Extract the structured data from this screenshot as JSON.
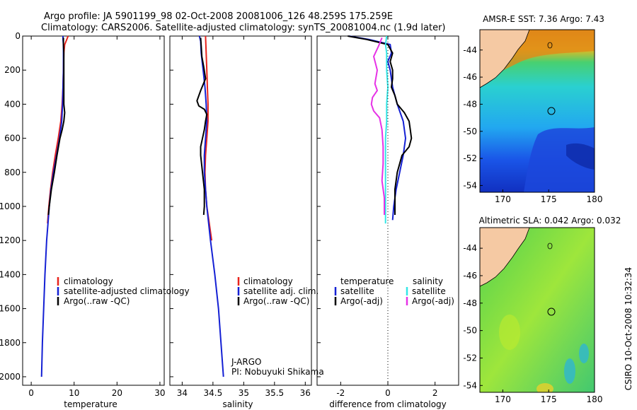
{
  "header": {
    "title_line1": "Argo profile: JA 5901199_98 02-Oct-2008 20081006_126 48.259S 175.259E",
    "title_line2": "Climatology: CARS2006. Satellite-adjusted climatology: synTS_20081004.nc (1.9d later)"
  },
  "credits": {
    "line1": "J-ARGO",
    "line2": "PI: Nobuyuki Shikama",
    "side_label": "CSIRO 10-Oct-2008 10:32:34"
  },
  "colors": {
    "climatology": "#e8231c",
    "satellite": "#1420d4",
    "argo": "#000000",
    "temp_satellite_diff": "#1420d4",
    "sal_satellite_diff": "#33e6e6",
    "sal_argo_diff": "#e632e6",
    "land": "#f5c9a3"
  },
  "maps": {
    "sst": {
      "title": "AMSR-E SST: 7.36 Argo: 7.43",
      "yticks": [
        "-44",
        "-46",
        "-48",
        "-50",
        "-52",
        "-54"
      ],
      "xticks": [
        "170",
        "175",
        "180"
      ]
    },
    "sla": {
      "title": "Altimetric SLA: 0.042 Argo: 0.032",
      "yticks": [
        "-44",
        "-46",
        "-48",
        "-50",
        "-52",
        "-54"
      ],
      "xticks": [
        "170",
        "175",
        "180"
      ]
    }
  },
  "chart_data": [
    {
      "type": "line",
      "panel": "temperature",
      "xlabel": "temperature",
      "ylabel": "",
      "xlim": [
        -2,
        31
      ],
      "ylim": [
        2050,
        0
      ],
      "xticks": [
        0,
        10,
        20,
        30
      ],
      "yticks": [
        0,
        200,
        400,
        600,
        800,
        1000,
        1200,
        1400,
        1600,
        1800,
        2000
      ],
      "legend": [
        "climatology",
        "satellite-adjusted climatology",
        "Argo(..raw -QC)"
      ],
      "series": [
        {
          "name": "climatology",
          "color": "#e8231c",
          "depth": [
            0,
            20,
            50,
            100,
            200,
            300,
            400,
            500,
            600,
            700,
            800,
            900,
            1000,
            1100
          ],
          "values": [
            8.6,
            8.3,
            7.8,
            7.6,
            7.5,
            7.4,
            7.2,
            6.9,
            6.3,
            5.6,
            5.0,
            4.5,
            4.1,
            3.8
          ]
        },
        {
          "name": "satellite-adjusted climatology",
          "color": "#1420d4",
          "depth": [
            0,
            20,
            50,
            100,
            200,
            300,
            400,
            500,
            600,
            700,
            800,
            900,
            1000,
            1100,
            1200,
            1400,
            1600,
            1800,
            2000
          ],
          "values": [
            7.4,
            7.4,
            7.5,
            7.5,
            7.5,
            7.4,
            7.3,
            7.1,
            6.6,
            5.9,
            5.2,
            4.6,
            4.2,
            3.9,
            3.6,
            3.2,
            2.9,
            2.6,
            2.4
          ]
        },
        {
          "name": "Argo(..raw -QC)",
          "color": "#000000",
          "depth": [
            10,
            50,
            100,
            200,
            300,
            400,
            450,
            500,
            550,
            600,
            700,
            800,
            900,
            1000,
            1050
          ],
          "values": [
            7.5,
            7.5,
            7.6,
            7.6,
            7.6,
            7.6,
            7.8,
            7.6,
            7.2,
            6.7,
            6.0,
            5.4,
            4.7,
            4.2,
            4.0
          ]
        }
      ]
    },
    {
      "type": "line",
      "panel": "salinity",
      "xlabel": "salinity",
      "xlim": [
        33.8,
        36.1
      ],
      "ylim": [
        2050,
        0
      ],
      "xticks": [
        34,
        34.5,
        35,
        35.5,
        36
      ],
      "legend": [
        "climatology",
        "satellite adj. clim.",
        "Argo(..raw -QC)"
      ],
      "series": [
        {
          "name": "climatology",
          "color": "#e8231c",
          "depth": [
            0,
            100,
            200,
            300,
            400,
            500,
            600,
            700,
            800,
            900,
            1000,
            1100,
            1200
          ],
          "values": [
            34.38,
            34.39,
            34.4,
            34.41,
            34.42,
            34.42,
            34.4,
            34.38,
            34.37,
            34.38,
            34.4,
            34.44,
            34.48
          ]
        },
        {
          "name": "satellite adj. clim.",
          "color": "#1420d4",
          "depth": [
            0,
            30,
            100,
            200,
            300,
            400,
            500,
            600,
            700,
            800,
            900,
            1000,
            1200,
            1400,
            1600,
            1800,
            2000
          ],
          "values": [
            34.28,
            34.3,
            34.31,
            34.34,
            34.37,
            34.39,
            34.4,
            34.38,
            34.36,
            34.36,
            34.38,
            34.4,
            34.46,
            34.53,
            34.59,
            34.63,
            34.67
          ]
        },
        {
          "name": "Argo(..raw -QC)",
          "color": "#000000",
          "depth": [
            10,
            60,
            120,
            180,
            250,
            320,
            380,
            410,
            430,
            460,
            500,
            550,
            600,
            650,
            700,
            800,
            900,
            1000,
            1050
          ],
          "values": [
            34.3,
            34.31,
            34.32,
            34.35,
            34.38,
            34.3,
            34.24,
            34.27,
            34.36,
            34.4,
            34.38,
            34.36,
            34.33,
            34.3,
            34.3,
            34.33,
            34.36,
            34.36,
            34.35
          ]
        }
      ]
    },
    {
      "type": "line",
      "panel": "difference",
      "xlabel": "difference from climatology",
      "xlim": [
        -3,
        3
      ],
      "ylim": [
        2050,
        0
      ],
      "xticks": [
        -2,
        0,
        2
      ],
      "legend_titles": [
        "temperature",
        "salinity"
      ],
      "legend": [
        "satellite",
        "Argo(-adj)",
        "satellite",
        "Argo(-adj)"
      ],
      "series": [
        {
          "name": "satellite",
          "group": "temperature",
          "color": "#1420d4",
          "depth": [
            0,
            20,
            50,
            100,
            150,
            200,
            300,
            400,
            500,
            600,
            700,
            800,
            900,
            1000,
            1080
          ],
          "values": [
            -1.65,
            -0.8,
            0.1,
            0.15,
            0.0,
            0.1,
            0.2,
            0.4,
            0.65,
            0.75,
            0.65,
            0.5,
            0.35,
            0.25,
            0.2
          ]
        },
        {
          "name": "Argo(-adj)",
          "group": "temperature",
          "color": "#000000",
          "depth": [
            0,
            20,
            50,
            100,
            150,
            200,
            250,
            300,
            350,
            400,
            450,
            500,
            550,
            600,
            650,
            700,
            800,
            900,
            1000,
            1050
          ],
          "values": [
            -1.7,
            -0.9,
            0.0,
            0.2,
            0.1,
            0.2,
            0.2,
            0.15,
            0.3,
            0.4,
            0.7,
            0.9,
            0.95,
            1.0,
            0.9,
            0.6,
            0.4,
            0.3,
            0.3,
            0.3
          ]
        },
        {
          "name": "satellite",
          "group": "salinity",
          "color": "#33e6e6",
          "depth": [
            0,
            50,
            100,
            200,
            300,
            400,
            500,
            600,
            700,
            800,
            900,
            1000,
            1100
          ],
          "values": [
            -0.05,
            -0.1,
            -0.05,
            -0.05,
            0.0,
            -0.05,
            -0.05,
            -0.1,
            -0.1,
            -0.1,
            -0.1,
            -0.1,
            -0.1
          ]
        },
        {
          "name": "Argo(-adj)",
          "group": "salinity",
          "color": "#e632e6",
          "depth": [
            10,
            60,
            120,
            200,
            280,
            320,
            360,
            400,
            440,
            480,
            550,
            650,
            750,
            850,
            950,
            1050
          ],
          "values": [
            -0.25,
            -0.4,
            -0.6,
            -0.45,
            -0.55,
            -0.45,
            -0.65,
            -0.7,
            -0.6,
            -0.35,
            -0.25,
            -0.2,
            -0.2,
            -0.25,
            -0.15,
            -0.15
          ]
        }
      ]
    }
  ]
}
